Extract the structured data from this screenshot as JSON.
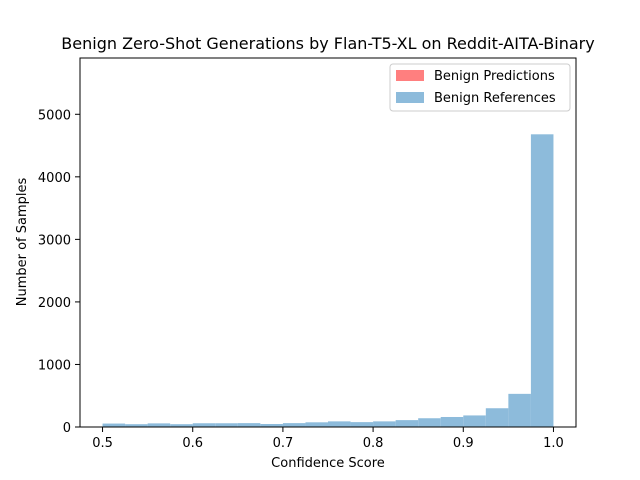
{
  "chart_data": {
    "type": "bar",
    "title": "Benign Zero-Shot Generations by Flan-T5-XL on Reddit-AITA-Binary",
    "xlabel": "Confidence Score",
    "ylabel": "Number of Samples",
    "xlim": [
      0.475,
      1.025
    ],
    "ylim": [
      0,
      5900
    ],
    "xticks": [
      "0.5",
      "0.6",
      "0.7",
      "0.8",
      "0.9",
      "1.0"
    ],
    "xtick_values": [
      0.5,
      0.6,
      0.7,
      0.8,
      0.9,
      1.0
    ],
    "yticks": [
      "0",
      "1000",
      "2000",
      "3000",
      "4000",
      "5000"
    ],
    "ytick_values": [
      0,
      1000,
      2000,
      3000,
      4000,
      5000
    ],
    "grid": false,
    "legend_position": "top-right",
    "legend": [
      {
        "label": "Benign Predictions",
        "color": "#ff7f7f"
      },
      {
        "label": "Benign References",
        "color": "#8dbbdb"
      }
    ],
    "series": [
      {
        "name": "Benign Predictions",
        "color": "#ff7f7f",
        "bins": [],
        "values": []
      },
      {
        "name": "Benign References",
        "color": "#8dbbdb",
        "bin_edges": [
          0.5,
          0.525,
          0.55,
          0.575,
          0.6,
          0.625,
          0.65,
          0.675,
          0.7,
          0.725,
          0.75,
          0.775,
          0.8,
          0.825,
          0.85,
          0.875,
          0.9,
          0.925,
          0.95,
          0.975,
          1.0
        ],
        "values": [
          55,
          45,
          58,
          45,
          60,
          60,
          62,
          48,
          62,
          75,
          90,
          78,
          90,
          110,
          140,
          160,
          185,
          300,
          530,
          4680
        ]
      }
    ]
  }
}
